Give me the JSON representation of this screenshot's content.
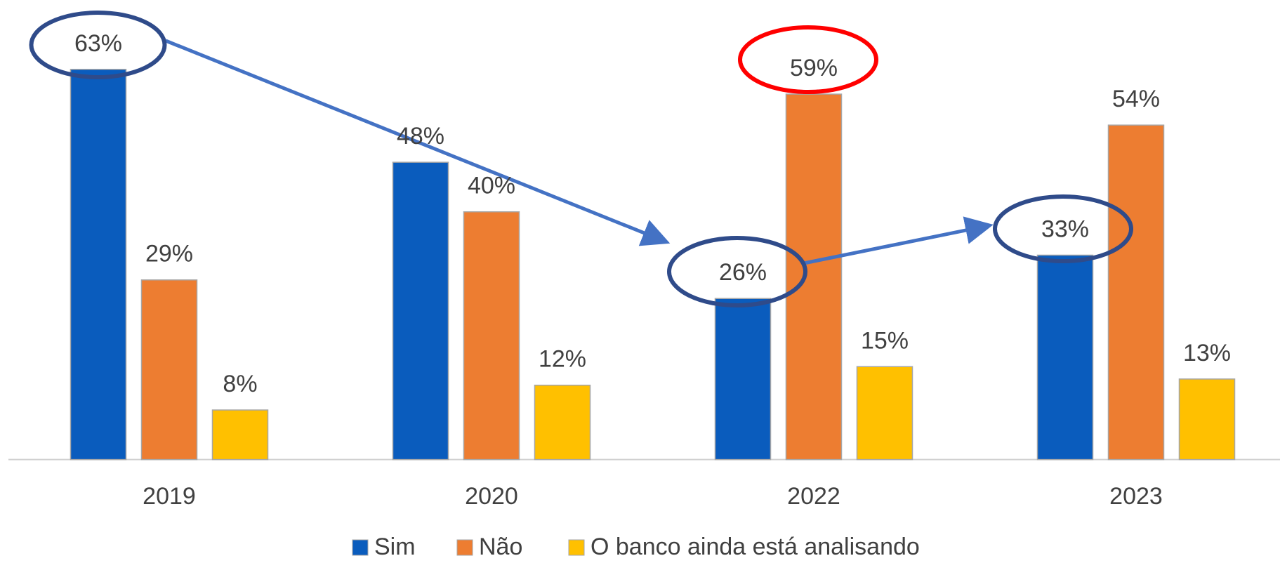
{
  "chart_data": {
    "type": "bar",
    "categories": [
      "2019",
      "2020",
      "2022",
      "2023"
    ],
    "series": [
      {
        "name": "Sim",
        "color": "#0a5cbd",
        "values": [
          63,
          48,
          26,
          33
        ],
        "value_labels": [
          "63%",
          "48%",
          "26%",
          "33%"
        ]
      },
      {
        "name": "Não",
        "color": "#ed7d31",
        "values": [
          29,
          40,
          59,
          54
        ],
        "value_labels": [
          "29%",
          "40%",
          "59%",
          "54%"
        ]
      },
      {
        "name": "O banco ainda está analisando",
        "color": "#ffc000",
        "values": [
          8,
          12,
          15,
          13
        ],
        "value_labels": [
          "8%",
          "12%",
          "15%",
          "13%"
        ]
      }
    ],
    "legend": "bottom"
  }
}
